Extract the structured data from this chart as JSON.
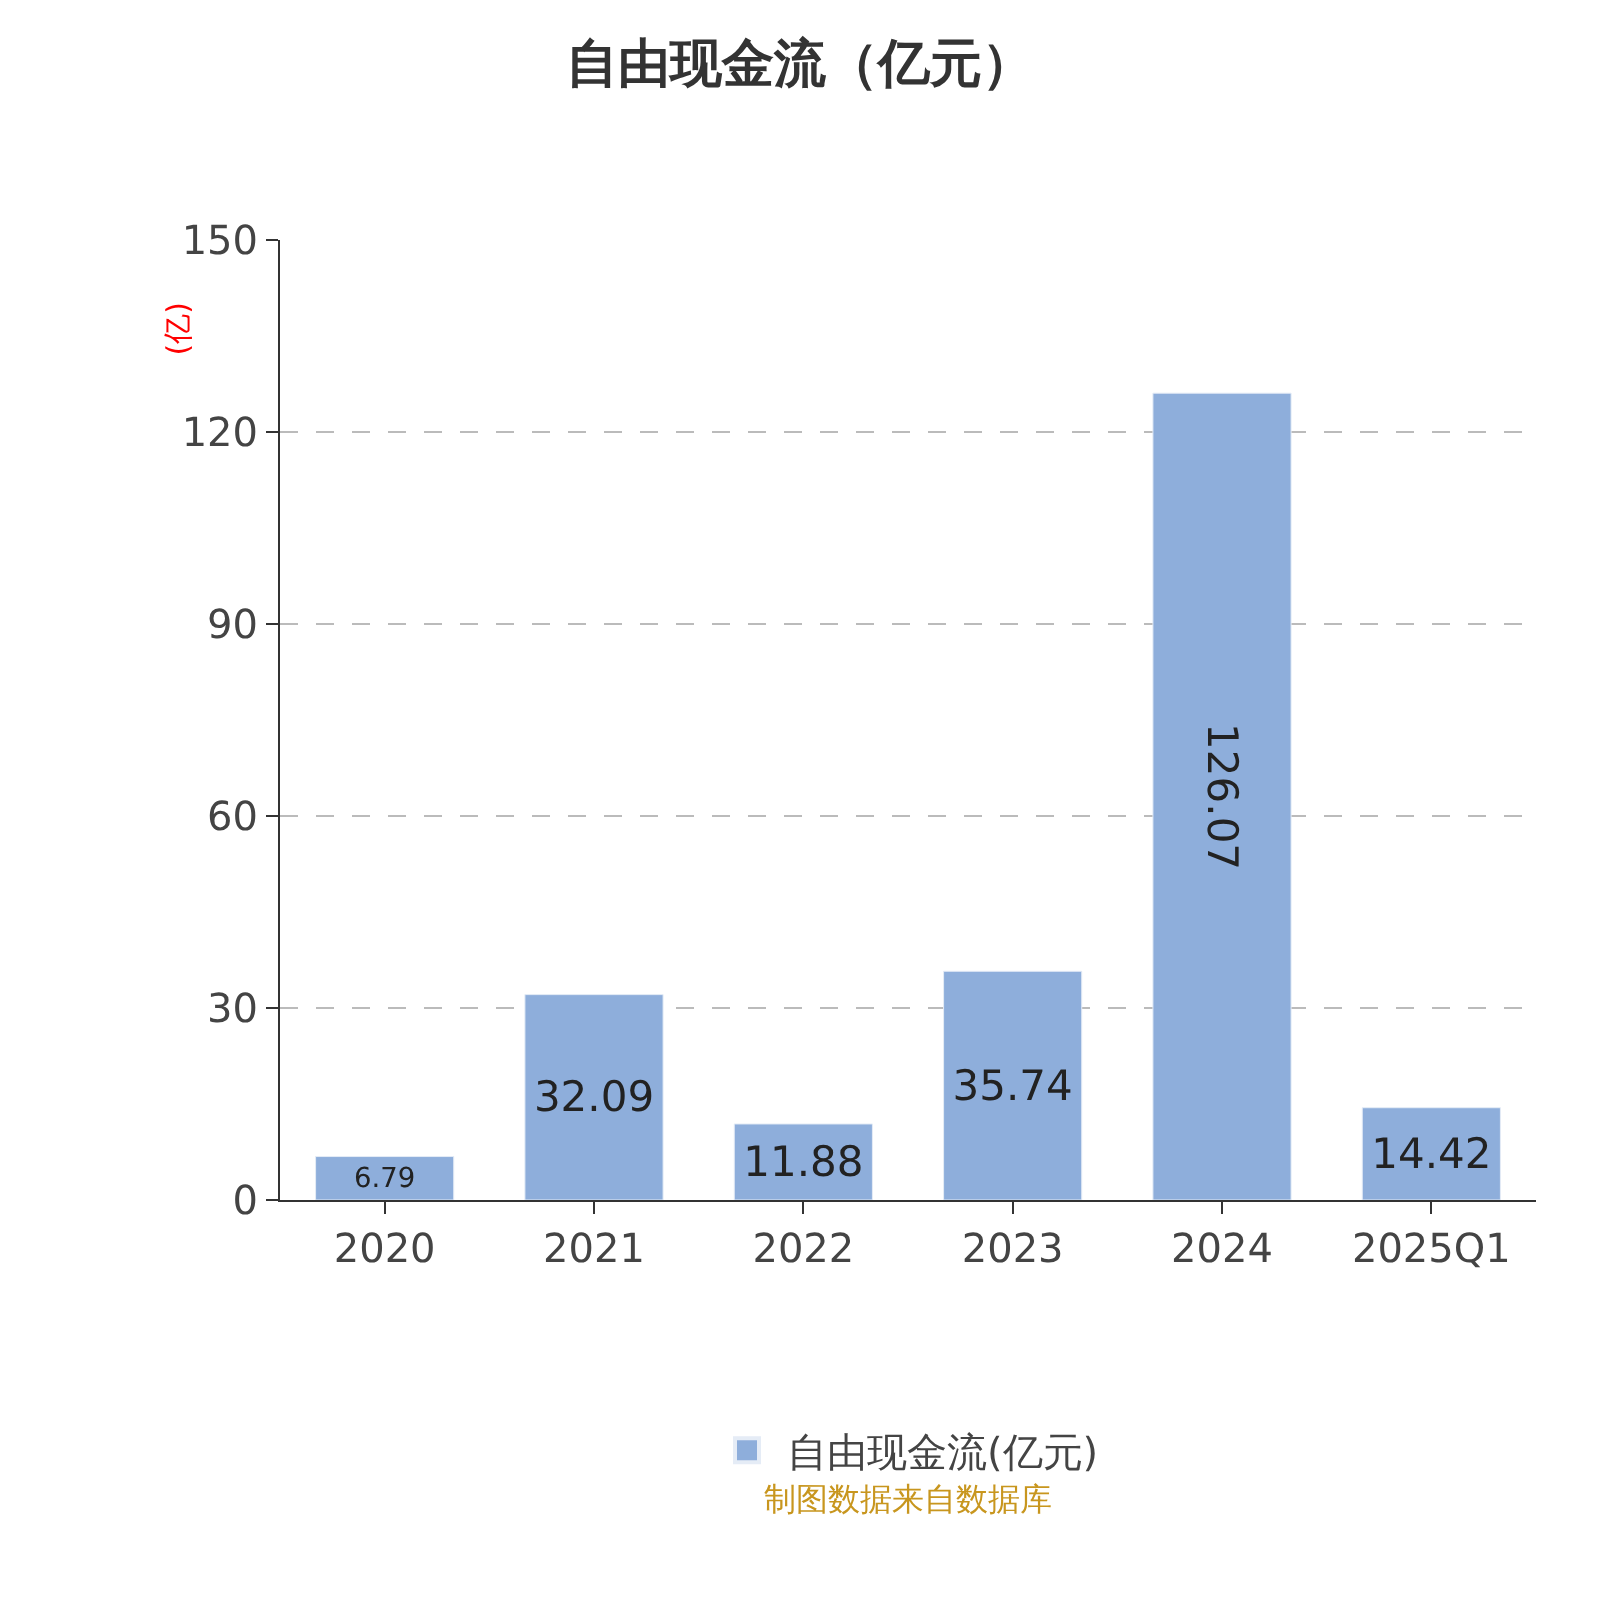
{
  "chart_data": {
    "type": "bar",
    "title": "自由现金流（亿元）",
    "ylabel": "(亿)",
    "categories": [
      "2020",
      "2021",
      "2022",
      "2023",
      "2024",
      "2025Q1"
    ],
    "series": [
      {
        "name": "自由现金流(亿元)",
        "color": "#8eaedb",
        "values": [
          6.79,
          32.09,
          11.88,
          35.74,
          126.07,
          14.42
        ]
      }
    ],
    "ylim": [
      0,
      150
    ],
    "yticks": [
      0,
      30,
      60,
      90,
      120,
      150
    ],
    "grid": "y",
    "legend": "bottom",
    "data_labels": true,
    "annotations": [
      "制图数据来自数据库"
    ]
  }
}
